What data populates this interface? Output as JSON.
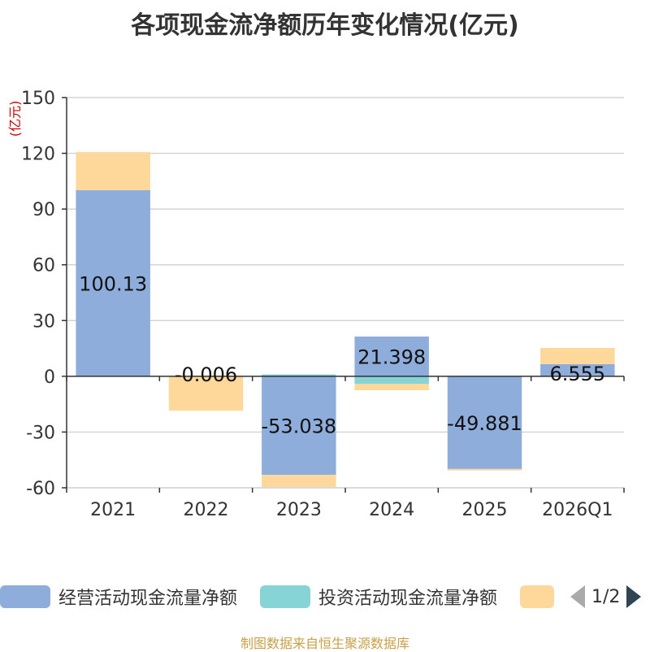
{
  "chart_data": {
    "type": "bar",
    "stacked": true,
    "title": "各项现金流净额历年变化情况(亿元)",
    "ylabel": "(亿元)",
    "categories": [
      "2021",
      "2022",
      "2023",
      "2024",
      "2025",
      "2026Q1"
    ],
    "ylim": [
      -60,
      150
    ],
    "yticks": [
      150,
      120,
      90,
      60,
      30,
      0,
      -30,
      -60
    ],
    "grid": true,
    "series": [
      {
        "name": "经营活动现金流量净额",
        "color": "#8eaddb",
        "values": [
          100.13,
          -0.006,
          -53.038,
          21.398,
          -49.881,
          6.555
        ]
      },
      {
        "name": "投资活动现金流量净额",
        "color": "#86d4d6",
        "values": [
          0,
          0,
          1.0,
          -4.0,
          0,
          0
        ]
      },
      {
        "name": "",
        "color": "#fdd89a",
        "values": [
          20.5,
          -18.5,
          -6.5,
          -3.5,
          -0.8,
          8.7
        ]
      }
    ],
    "data_labels": [
      "100.13",
      "-0.006",
      "-53.038",
      "21.398",
      "-49.881",
      "6.555"
    ]
  },
  "legend": {
    "page_text": "1/2"
  },
  "footer": {
    "source": "制图数据来自恒生聚源数据库"
  }
}
